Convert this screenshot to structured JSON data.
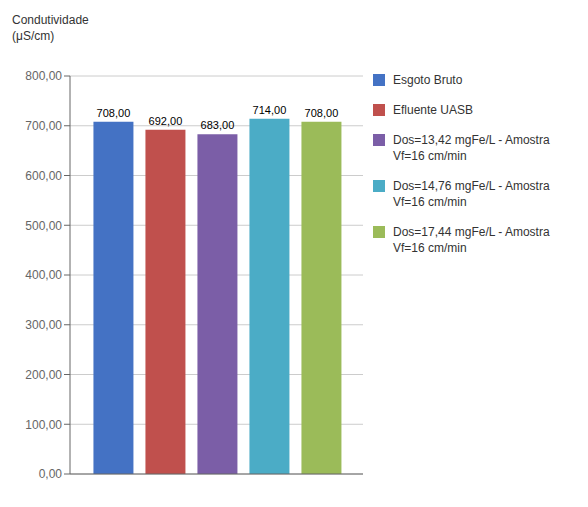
{
  "chart_data": {
    "type": "bar",
    "ylabel": "Condutividade\n(μS/cm)",
    "categories": [
      null
    ],
    "series": [
      {
        "name": "Esgoto Bruto",
        "color": "#4472C4",
        "values": [
          708.0
        ],
        "value_labels": [
          "708,00"
        ]
      },
      {
        "name": "Efluente UASB",
        "color": "#C0504D",
        "values": [
          692.0
        ],
        "value_labels": [
          "692,00"
        ]
      },
      {
        "name": "Dos=13,42 mgFe/L - Amostra\nVf=16 cm/min",
        "color": "#7B5EA7",
        "values": [
          683.0
        ],
        "value_labels": [
          "683,00"
        ]
      },
      {
        "name": "Dos=14,76 mgFe/L - Amostra\nVf=16 cm/min",
        "color": "#4BACC6",
        "values": [
          714.0
        ],
        "value_labels": [
          "714,00"
        ]
      },
      {
        "name": "Dos=17,44 mgFe/L - Amostra\nVf=16 cm/min",
        "color": "#9BBB59",
        "values": [
          708.0
        ],
        "value_labels": [
          "708,00"
        ]
      }
    ],
    "ylim": [
      0,
      800
    ],
    "yticks": [
      {
        "value": 0,
        "label": "0,00"
      },
      {
        "value": 100,
        "label": "100,00"
      },
      {
        "value": 200,
        "label": "200,00"
      },
      {
        "value": 300,
        "label": "300,00"
      },
      {
        "value": 400,
        "label": "400,00"
      },
      {
        "value": 500,
        "label": "500,00"
      },
      {
        "value": 600,
        "label": "600,00"
      },
      {
        "value": 700,
        "label": "700,00"
      },
      {
        "value": 800,
        "label": "800,00"
      }
    ],
    "grid": true,
    "legend": "right",
    "data_labels": true,
    "tick_labels": "y"
  }
}
